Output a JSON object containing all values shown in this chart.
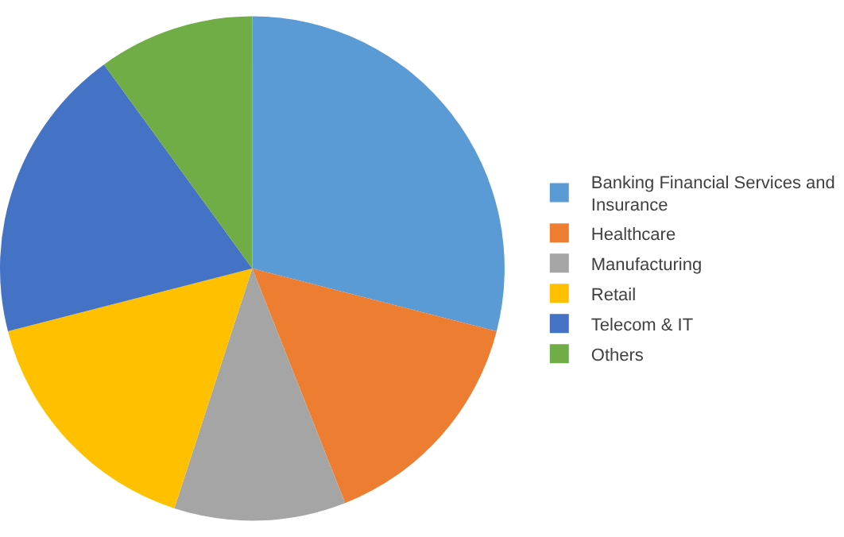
{
  "chart_data": {
    "type": "pie",
    "categories": [
      "Banking Financial Services and Insurance",
      "Healthcare",
      "Manufacturing",
      "Retail",
      "Telecom & IT",
      "Others"
    ],
    "values": [
      29,
      15,
      11,
      16,
      19,
      10
    ],
    "colors": [
      "#5b9bd5",
      "#ed7d31",
      "#a5a5a5",
      "#ffc000",
      "#4472c4",
      "#70ad47"
    ],
    "legend": "right"
  }
}
